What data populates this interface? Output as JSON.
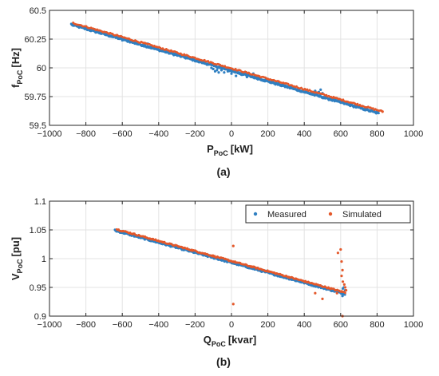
{
  "chart_data": [
    {
      "type": "scatter",
      "caption": "(a)",
      "xlabel": {
        "main": "P",
        "sub": "PoC",
        "unit": "[kW]"
      },
      "ylabel": {
        "main": "f",
        "sub": "PoC",
        "unit": "[Hz]"
      },
      "xlim": [
        -1000,
        1000
      ],
      "ylim": [
        59.5,
        60.5
      ],
      "xticks": [
        -1000,
        -800,
        -600,
        -400,
        -200,
        0,
        200,
        400,
        600,
        800,
        1000
      ],
      "xtick_labels": [
        "−1000",
        "−800",
        "−600",
        "−400",
        "−200",
        "0",
        "200",
        "400",
        "600",
        "800",
        "1000"
      ],
      "yticks": [
        59.5,
        59.75,
        60,
        60.25,
        60.5
      ],
      "ytick_labels": [
        "59.5",
        "59.75",
        "60",
        "60.25",
        "60.5"
      ],
      "grid": true,
      "legend": null,
      "series": [
        {
          "color": "#2f7fc1",
          "trend": {
            "x_start": -880,
            "y_start": 60.38,
            "x_end": 805,
            "y_end": 59.61
          },
          "outliers": [
            {
              "x": -600,
              "y": 60.24
            },
            {
              "x": -595,
              "y": 60.26
            },
            {
              "x": -460,
              "y": 60.21
            },
            {
              "x": -180,
              "y": 60.05
            },
            {
              "x": -170,
              "y": 60.06
            },
            {
              "x": -150,
              "y": 60.04
            },
            {
              "x": -130,
              "y": 60.03
            },
            {
              "x": -110,
              "y": 60.0
            },
            {
              "x": -100,
              "y": 59.99
            },
            {
              "x": -90,
              "y": 59.97
            },
            {
              "x": -80,
              "y": 59.98
            },
            {
              "x": -70,
              "y": 59.96
            },
            {
              "x": -55,
              "y": 59.98
            },
            {
              "x": -40,
              "y": 59.96
            },
            {
              "x": -20,
              "y": 59.97
            },
            {
              "x": 0,
              "y": 59.95
            },
            {
              "x": 10,
              "y": 59.97
            },
            {
              "x": 25,
              "y": 59.93
            },
            {
              "x": 40,
              "y": 59.96
            },
            {
              "x": 55,
              "y": 59.94
            },
            {
              "x": 70,
              "y": 59.95
            },
            {
              "x": 85,
              "y": 59.92
            },
            {
              "x": 100,
              "y": 59.94
            },
            {
              "x": 120,
              "y": 59.95
            },
            {
              "x": 140,
              "y": 59.93
            },
            {
              "x": 480,
              "y": 59.79
            },
            {
              "x": 490,
              "y": 59.81
            },
            {
              "x": 500,
              "y": 59.78
            },
            {
              "x": 460,
              "y": 59.8
            }
          ]
        },
        {
          "color": "#e4582a",
          "trend": {
            "x_start": -870,
            "y_start": 60.39,
            "x_end": 830,
            "y_end": 59.62
          },
          "outliers": [
            {
              "x": 830,
              "y": 59.62
            }
          ]
        }
      ]
    },
    {
      "type": "scatter",
      "caption": "(b)",
      "xlabel": {
        "main": "Q",
        "sub": "PoC",
        "unit": "[kvar]"
      },
      "ylabel": {
        "main": "V",
        "sub": "PoC",
        "unit": "[pu]"
      },
      "xlim": [
        -1000,
        1000
      ],
      "ylim": [
        0.9,
        1.1
      ],
      "xticks": [
        -1000,
        -800,
        -600,
        -400,
        -200,
        0,
        200,
        400,
        600,
        800,
        1000
      ],
      "xtick_labels": [
        "−1000",
        "−800",
        "−600",
        "−400",
        "−200",
        "0",
        "200",
        "400",
        "600",
        "800",
        "1000"
      ],
      "yticks": [
        0.9,
        0.95,
        1,
        1.05,
        1.1
      ],
      "ytick_labels": [
        "0.9",
        "0.95",
        "1",
        "1.05",
        "1.1"
      ],
      "grid": true,
      "legend": "top-right",
      "series": [
        {
          "name": "Measured",
          "color": "#2f7fc1",
          "trend": {
            "x_start": -640,
            "y_start": 1.05,
            "x_end": 620,
            "y_end": 0.94
          },
          "outliers": [
            {
              "x": 610,
              "y": 0.935
            },
            {
              "x": 615,
              "y": 0.942
            },
            {
              "x": 620,
              "y": 0.938
            },
            {
              "x": 625,
              "y": 0.945
            },
            {
              "x": 618,
              "y": 0.95
            },
            {
              "x": 612,
              "y": 0.948
            }
          ]
        },
        {
          "name": "Simulated",
          "color": "#e4582a",
          "trend": {
            "x_start": -630,
            "y_start": 1.051,
            "x_end": 625,
            "y_end": 0.941
          },
          "outliers": [
            {
              "x": 10,
              "y": 1.022
            },
            {
              "x": 10,
              "y": 0.921
            },
            {
              "x": 460,
              "y": 0.94
            },
            {
              "x": 500,
              "y": 0.93
            },
            {
              "x": 580,
              "y": 0.94
            },
            {
              "x": 585,
              "y": 1.01
            },
            {
              "x": 600,
              "y": 1.016
            },
            {
              "x": 605,
              "y": 0.995
            },
            {
              "x": 605,
              "y": 0.97
            },
            {
              "x": 610,
              "y": 0.98
            },
            {
              "x": 612,
              "y": 0.96
            },
            {
              "x": 610,
              "y": 0.9
            },
            {
              "x": 620,
              "y": 0.955
            },
            {
              "x": 625,
              "y": 0.95
            },
            {
              "x": 630,
              "y": 0.945
            }
          ]
        }
      ]
    }
  ]
}
